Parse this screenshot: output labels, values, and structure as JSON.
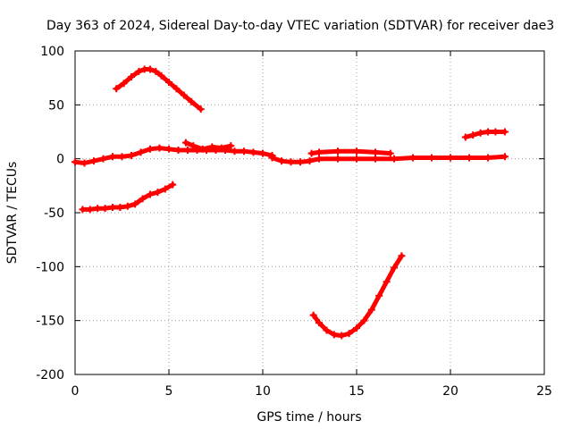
{
  "chart_data": {
    "type": "line",
    "title": "Day 363 of 2024, Sidereal Day-to-day VTEC variation (SDTVAR) for receiver dae3",
    "xlabel": "GPS time / hours",
    "ylabel": "SDTVAR / TECUs",
    "xlim": [
      0,
      25
    ],
    "ylim": [
      -200,
      100
    ],
    "xticks": [
      0,
      5,
      10,
      15,
      20,
      25
    ],
    "yticks": [
      -200,
      -150,
      -100,
      -50,
      0,
      50,
      100
    ],
    "xtick_labels": [
      "0",
      "5",
      "10",
      "15",
      "20",
      "25"
    ],
    "ytick_labels": [
      "-200",
      "-150",
      "-100",
      "-50",
      "0",
      "50",
      "100"
    ],
    "grid": true,
    "color": "#ff0000",
    "series": [
      {
        "name": "arc-upper-left",
        "x": [
          2.2,
          2.6,
          3.0,
          3.4,
          3.7,
          4.0,
          4.3,
          4.6,
          5.0,
          5.4,
          5.8,
          6.2,
          6.7
        ],
        "y": [
          65,
          70,
          76,
          81,
          83,
          83,
          81,
          77,
          71,
          65,
          59,
          53,
          46
        ]
      },
      {
        "name": "arc-mid-left",
        "x": [
          0.4,
          0.8,
          1.2,
          1.6,
          2.0,
          2.4,
          2.8,
          3.2,
          3.6,
          4.0,
          4.4,
          4.8,
          5.2
        ],
        "y": [
          -47,
          -47,
          -46,
          -46,
          -45,
          -45,
          -44,
          -42,
          -37,
          -33,
          -31,
          -28,
          -24
        ]
      },
      {
        "name": "arc-near-zero-a",
        "x": [
          0,
          0.5,
          1.0,
          1.5,
          2.0,
          2.5,
          3.0,
          3.5,
          4.0,
          4.5,
          5.0,
          5.5,
          6.0,
          6.5,
          7.0,
          7.5,
          8.0,
          8.5,
          9.0,
          9.5,
          10.0,
          10.5
        ],
        "y": [
          -3,
          -4,
          -2,
          0,
          2,
          2,
          3,
          6,
          9,
          10,
          9,
          8,
          8,
          8,
          8,
          8,
          8,
          7,
          7,
          6,
          5,
          3
        ]
      },
      {
        "name": "arc-near-zero-b",
        "x": [
          10.5,
          11.0,
          11.5,
          12.0,
          12.5,
          13.0,
          14.0,
          15.0,
          16.0,
          17.0,
          18.0,
          19.0,
          20.0,
          21.0,
          22.0,
          22.9
        ],
        "y": [
          1,
          -2,
          -3,
          -3,
          -2,
          0,
          0,
          0,
          0,
          0,
          1,
          1,
          1,
          1,
          1,
          2
        ]
      },
      {
        "name": "arc-near-zero-c",
        "x": [
          12.6,
          13.0,
          14.0,
          15.0,
          16.0,
          16.8
        ],
        "y": [
          5,
          6,
          7,
          7,
          6,
          5
        ]
      },
      {
        "name": "arc-short-left",
        "x": [
          5.9,
          6.3,
          6.8,
          7.3,
          7.8,
          8.3
        ],
        "y": [
          15,
          12,
          9,
          11,
          10,
          12
        ]
      },
      {
        "name": "arc-lower",
        "x": [
          12.7,
          13.0,
          13.4,
          13.8,
          14.2,
          14.6,
          15.0,
          15.4,
          15.8,
          16.2,
          16.6,
          17.0,
          17.4
        ],
        "y": [
          -145,
          -152,
          -159,
          -163,
          -164,
          -162,
          -157,
          -150,
          -140,
          -127,
          -114,
          -101,
          -90
        ]
      },
      {
        "name": "arc-upper-right",
        "x": [
          20.8,
          21.2,
          21.6,
          22.0,
          22.4,
          22.9
        ],
        "y": [
          20,
          22,
          24,
          25,
          25,
          25
        ]
      }
    ]
  }
}
